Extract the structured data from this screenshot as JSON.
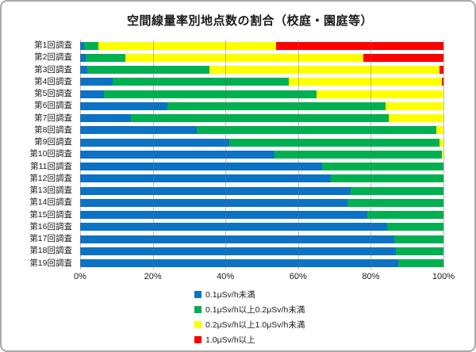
{
  "title": "空間線量率別地点数の割合（校庭・園庭等）",
  "chart_data": {
    "type": "bar",
    "orientation": "horizontal",
    "stacked": true,
    "title": "空間線量率別地点数の割合（校庭・園庭等）",
    "xlabel": "",
    "ylabel": "",
    "xlim": [
      0,
      100
    ],
    "grid": true,
    "legend_position": "bottom",
    "x_ticks": [
      "0%",
      "20%",
      "40%",
      "60%",
      "80%",
      "100%"
    ],
    "categories": [
      "第1回調査",
      "第2回調査",
      "第3回調査",
      "第4回調査",
      "第5回調査",
      "第6回調査",
      "第7回調査",
      "第8回調査",
      "第9回調査",
      "第10回調査",
      "第11回調査",
      "第12回調査",
      "第13回調査",
      "第14回調査",
      "第15回調査",
      "第16回調査",
      "第17回調査",
      "第18回調査",
      "第19回調査"
    ],
    "series": [
      {
        "name": "0.1μSv/h未満",
        "color": "#0C72C4",
        "values": [
          1,
          1.5,
          2,
          9,
          6.5,
          24,
          14,
          32,
          41,
          53.5,
          66.5,
          69,
          74.5,
          73.5,
          79,
          84.5,
          86.5,
          87,
          87.5
        ]
      },
      {
        "name": "0.1μSv/h以上0.2μSv/h未満",
        "color": "#00B050",
        "values": [
          4,
          11,
          33.5,
          48.5,
          58.5,
          60,
          71,
          66,
          58,
          46,
          33.5,
          31,
          25.5,
          26.5,
          21,
          15.5,
          13.5,
          13,
          12.5
        ]
      },
      {
        "name": "0.2μSv/h以上1.0μSv/h未満",
        "color": "#FFFF00",
        "values": [
          49,
          65.5,
          63.5,
          42,
          35,
          16,
          15,
          2,
          1,
          0.5,
          0,
          0,
          0,
          0,
          0,
          0,
          0,
          0,
          0
        ]
      },
      {
        "name": "1.0μSv/h以上",
        "color": "#FF0000",
        "values": [
          46,
          22,
          1,
          0.5,
          0,
          0,
          0,
          0,
          0,
          0,
          0,
          0,
          0,
          0,
          0,
          0,
          0,
          0,
          0
        ]
      }
    ]
  }
}
